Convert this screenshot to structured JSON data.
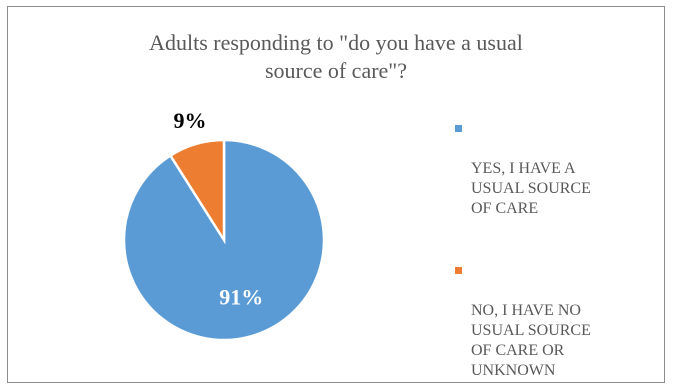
{
  "chart_data": {
    "type": "pie",
    "title_lines": [
      "Adults responding to \"do you have a usual",
      "source of care\"?"
    ],
    "slices": [
      {
        "label": "YES, I HAVE A\nUSUAL SOURCE\nOF CARE",
        "value": 91,
        "data_label": "91%",
        "color": "#5b9bd5",
        "label_color": "#ffffff"
      },
      {
        "label": "NO, I HAVE NO\nUSUAL SOURCE\nOF CARE OR\nUNKNOWN",
        "value": 9,
        "data_label": "9%",
        "color": "#ed7d31",
        "label_color": "#000000"
      }
    ],
    "legend_position": "right"
  }
}
